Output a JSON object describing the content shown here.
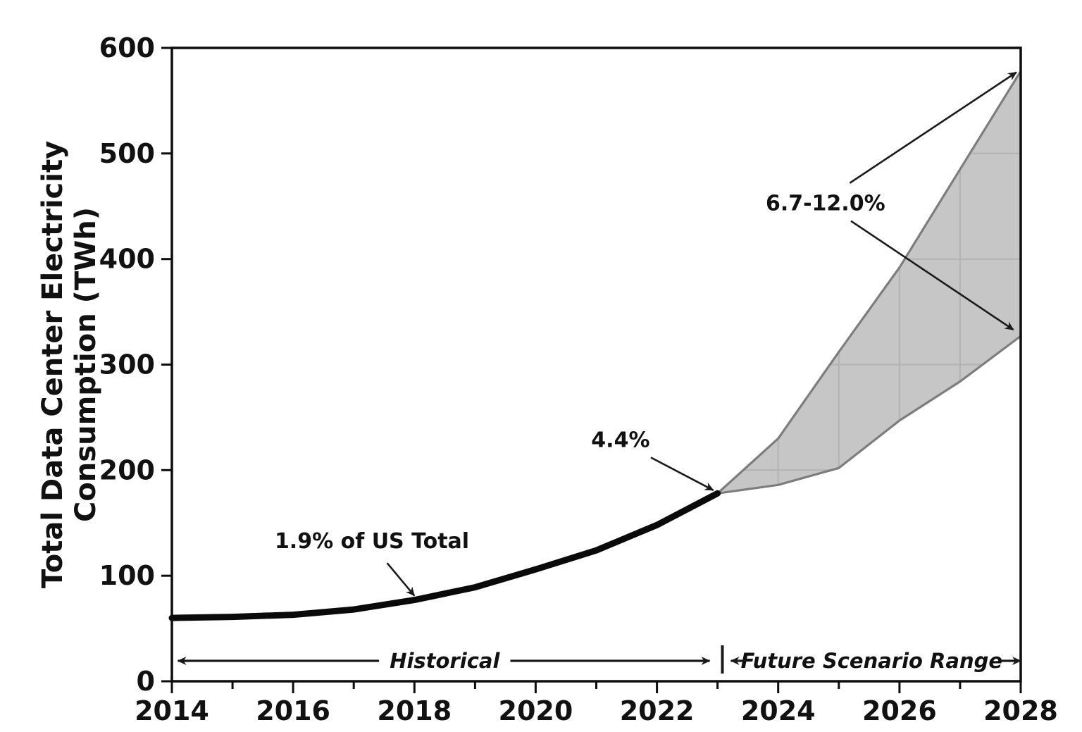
{
  "figure": {
    "background": "#ffffff"
  },
  "chart_data": {
    "type": "area",
    "title": "",
    "xlabel": "",
    "ylabel_lines": [
      "Total Data Center Electricity",
      "Consumption (TWh)"
    ],
    "xlim": [
      2014,
      2028
    ],
    "ylim": [
      0,
      600
    ],
    "x_major_ticks": [
      2014,
      2016,
      2018,
      2020,
      2022,
      2024,
      2026,
      2028
    ],
    "x_minor_ticks": [
      2015,
      2017,
      2019,
      2021,
      2023,
      2025,
      2027
    ],
    "y_ticks": [
      0,
      100,
      200,
      300,
      400,
      500,
      600
    ],
    "grid": "faint gridlines visible only inside shaded band, 100 TWh horizontal steps and yearly vertical steps",
    "band_grid_y": [
      200,
      300,
      400,
      500
    ],
    "band_grid_x": [
      2024,
      2025,
      2026,
      2027
    ],
    "series": [
      {
        "name": "Historical",
        "type": "line",
        "x": [
          2014,
          2015,
          2016,
          2017,
          2018,
          2019,
          2020,
          2021,
          2022,
          2023
        ],
        "y": [
          60,
          61,
          63,
          68,
          77,
          89,
          106,
          124,
          148,
          178
        ]
      },
      {
        "name": "Future Scenario Range",
        "type": "band",
        "x": [
          2023,
          2024,
          2025,
          2026,
          2027,
          2028
        ],
        "upper": [
          178,
          230,
          312,
          392,
          485,
          578
        ],
        "lower": [
          178,
          186,
          202,
          247,
          284,
          327
        ]
      }
    ],
    "annotations": [
      {
        "id": "us-total-share-2018",
        "text": "1.9% of US Total",
        "text_x": 2017.3,
        "text_y": 126,
        "arrows": [
          {
            "from_x": 2017.55,
            "from_y": 112,
            "to_x": 2018.0,
            "to_y": 81
          }
        ]
      },
      {
        "id": "us-total-share-2023",
        "text": "4.4%",
        "text_x": 2021.4,
        "text_y": 222,
        "arrows": [
          {
            "from_x": 2021.9,
            "from_y": 212,
            "to_x": 2022.93,
            "to_y": 181
          }
        ]
      },
      {
        "id": "us-total-share-2028",
        "text": "6.7-12.0%",
        "text_x": 2024.78,
        "text_y": 446,
        "arrows": [
          {
            "from_x": 2025.18,
            "from_y": 472,
            "to_x": 2027.93,
            "to_y": 577
          },
          {
            "from_x": 2025.2,
            "from_y": 436,
            "to_x": 2027.88,
            "to_y": 333
          }
        ]
      }
    ],
    "span_labels": [
      {
        "id": "historical-span",
        "label": "Historical",
        "x_start": 2014.1,
        "x_end": 2022.87,
        "label_center_x": 2018.5
      },
      {
        "id": "future-span",
        "label": "Future Scenario Range",
        "x_start": 2023.22,
        "x_end": 2028.0,
        "label_center_x": 2025.54
      }
    ],
    "span_divider_x": 2023.08
  },
  "colors": {
    "axis": "#0d0d0d",
    "text": "#111111",
    "historical_line": "#0a0a0a",
    "band_fill": "#c6c6c6",
    "band_edge": "#7d7d7d",
    "band_grid": "#b2b2b2",
    "annotation_arrow": "#1a1a1a"
  }
}
